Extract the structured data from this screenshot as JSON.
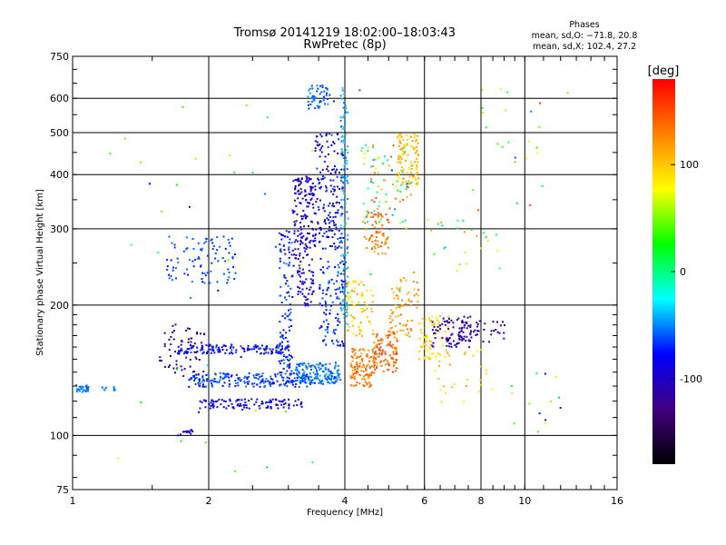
{
  "chart_data": {
    "type": "scatter",
    "title": "Tromsø 20141219 18:02:00–18:03:43",
    "subtitle": "RwPretec (8p)",
    "xlabel": "Frequency [MHz]",
    "ylabel": "Stationary phase Virtual Height [km]",
    "xscale": "log",
    "yscale": "log",
    "xlim": [
      1,
      16
    ],
    "ylim": [
      75,
      750
    ],
    "x_ticks": [
      1,
      2,
      4,
      6,
      8,
      10,
      16
    ],
    "y_ticks": [
      75,
      100,
      200,
      300,
      400,
      500,
      600,
      750
    ],
    "x_grid": [
      2,
      4,
      6,
      8,
      10
    ],
    "y_grid": [
      100,
      200,
      300,
      400,
      500,
      600
    ],
    "grid": true,
    "info": {
      "heading": "Phases",
      "line_o": "mean, sd,O: −71.8, 20.8",
      "line_x": "mean, sd,X: 102.4, 27.2"
    },
    "colorbar": {
      "label": "[deg]",
      "range": [
        -180,
        180
      ],
      "ticks": [
        100,
        0,
        -100
      ],
      "colors": [
        "#ff0000",
        "#ff8000",
        "#ffff00",
        "#00ff00",
        "#00ffff",
        "#0000ff",
        "#400080",
        "#000000"
      ]
    },
    "clusters": [
      {
        "f": [
          1.0,
          1.08
        ],
        "h": [
          126,
          132
        ],
        "phase": [
          -60,
          -45
        ],
        "n": 30
      },
      {
        "f": [
          1.15,
          1.25
        ],
        "h": [
          126,
          130
        ],
        "phase": [
          -60,
          -40
        ],
        "n": 8
      },
      {
        "f": [
          1.55,
          1.95
        ],
        "h": [
          140,
          182
        ],
        "phase": [
          -140,
          -115
        ],
        "n": 60
      },
      {
        "f": [
          1.7,
          3.0
        ],
        "h": [
          155,
          163
        ],
        "phase": [
          -100,
          -60
        ],
        "n": 150
      },
      {
        "f": [
          1.8,
          3.4
        ],
        "h": [
          130,
          140
        ],
        "phase": [
          -80,
          -50
        ],
        "n": 200
      },
      {
        "f": [
          1.9,
          3.2
        ],
        "h": [
          116,
          122
        ],
        "phase": [
          -100,
          -70
        ],
        "n": 110
      },
      {
        "f": [
          1.6,
          2.3
        ],
        "h": [
          225,
          290
        ],
        "phase": [
          -75,
          -50
        ],
        "n": 90
      },
      {
        "f": [
          1.7,
          1.85
        ],
        "h": [
          100,
          104
        ],
        "phase": [
          -110,
          -80
        ],
        "n": 15
      },
      {
        "f": [
          2.85,
          3.05
        ],
        "h": [
          140,
          300
        ],
        "phase": [
          -100,
          -50
        ],
        "n": 110
      },
      {
        "f": [
          3.05,
          3.4
        ],
        "h": [
          200,
          400
        ],
        "phase": [
          -115,
          -80
        ],
        "n": 200
      },
      {
        "f": [
          3.1,
          3.9
        ],
        "h": [
          132,
          148
        ],
        "phase": [
          -70,
          -40
        ],
        "n": 160
      },
      {
        "f": [
          3.4,
          3.95
        ],
        "h": [
          270,
          500
        ],
        "phase": [
          -110,
          -60
        ],
        "n": 180
      },
      {
        "f": [
          3.5,
          4.0
        ],
        "h": [
          160,
          260
        ],
        "phase": [
          -90,
          -50
        ],
        "n": 110
      },
      {
        "f": [
          3.3,
          3.7
        ],
        "h": [
          570,
          650
        ],
        "phase": [
          -70,
          -40
        ],
        "n": 50
      },
      {
        "f": [
          3.9,
          4.05
        ],
        "h": [
          180,
          650
        ],
        "phase": [
          -60,
          -30
        ],
        "n": 120
      },
      {
        "f": [
          4.1,
          4.6
        ],
        "h": [
          130,
          160
        ],
        "phase": [
          110,
          150
        ],
        "n": 110
      },
      {
        "f": [
          4.6,
          5.2
        ],
        "h": [
          140,
          175
        ],
        "phase": [
          120,
          160
        ],
        "n": 110
      },
      {
        "f": [
          4.0,
          4.6
        ],
        "h": [
          170,
          230
        ],
        "phase": [
          80,
          120
        ],
        "n": 70
      },
      {
        "f": [
          4.4,
          5.0
        ],
        "h": [
          260,
          330
        ],
        "phase": [
          110,
          150
        ],
        "n": 70
      },
      {
        "f": [
          5.2,
          5.8
        ],
        "h": [
          380,
          500
        ],
        "phase": [
          90,
          120
        ],
        "n": 110
      },
      {
        "f": [
          4.3,
          5.6
        ],
        "h": [
          300,
          480
        ],
        "phase": [
          -60,
          150
        ],
        "n": 80
      },
      {
        "f": [
          5.0,
          5.8
        ],
        "h": [
          170,
          240
        ],
        "phase": [
          100,
          140
        ],
        "n": 70
      },
      {
        "f": [
          5.8,
          6.8
        ],
        "h": [
          150,
          190
        ],
        "phase": [
          80,
          110
        ],
        "n": 70
      },
      {
        "f": [
          6.2,
          7.6
        ],
        "h": [
          160,
          190
        ],
        "phase": [
          -130,
          -90
        ],
        "n": 70
      },
      {
        "f": [
          7.0,
          9.0
        ],
        "h": [
          165,
          185
        ],
        "phase": [
          -130,
          -100
        ],
        "n": 50
      },
      {
        "f": [
          6.0,
          8.5
        ],
        "h": [
          120,
          160
        ],
        "phase": [
          60,
          120
        ],
        "n": 30
      },
      {
        "f": [
          6.0,
          9.5
        ],
        "h": [
          240,
          320
        ],
        "phase": [
          -60,
          130
        ],
        "n": 25
      },
      {
        "f": [
          7.0,
          12.5
        ],
        "h": [
          330,
          650
        ],
        "phase": [
          -60,
          160
        ],
        "n": 25
      },
      {
        "f": [
          9.0,
          12.0
        ],
        "h": [
          95,
          140
        ],
        "phase": [
          -120,
          100
        ],
        "n": 14
      },
      {
        "f": [
          1.2,
          5.5
        ],
        "h": [
          80,
          650
        ],
        "phase": [
          -130,
          100
        ],
        "n": 50
      }
    ]
  }
}
